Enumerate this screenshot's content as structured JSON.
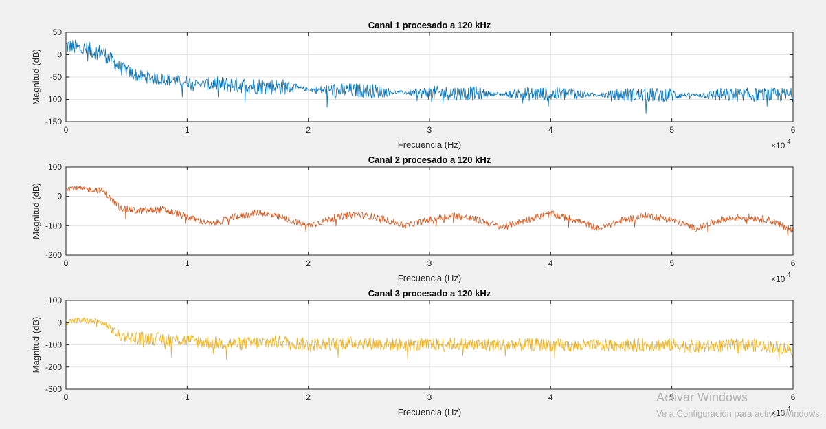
{
  "chart_data": [
    {
      "type": "line",
      "title": "Canal 1 procesado a 120 kHz",
      "xlabel": "Frecuencia (Hz)",
      "ylabel": "Magnitud (dB)",
      "xlim": [
        0,
        60000
      ],
      "ylim": [
        -150,
        50
      ],
      "xticks": [
        0,
        10000,
        20000,
        30000,
        40000,
        50000,
        60000
      ],
      "xticklabels": [
        "0",
        "1",
        "2",
        "3",
        "4",
        "5",
        "6"
      ],
      "yticks": [
        50,
        0,
        -50,
        -100,
        -150
      ],
      "yticklabels": [
        "50",
        "0",
        "-50",
        "-100",
        "-150"
      ],
      "x_multiplier": "×10",
      "x_multiplier_exp": "4",
      "grid": true,
      "color": "#0072BD",
      "series": [
        {
          "x": [
            0,
            1500,
            3000,
            4500,
            6000,
            8000,
            10000,
            11000,
            12000,
            14000,
            16000,
            18000,
            19500,
            20000,
            22000,
            24000,
            26000,
            27000,
            28000,
            30000,
            32000,
            34000,
            35000,
            36000,
            38000,
            40000,
            42000,
            43000,
            44000,
            46000,
            48000,
            50000,
            51000,
            52000,
            54000,
            56000,
            58000,
            60000
          ],
          "y": [
            20,
            12,
            5,
            -30,
            -48,
            -55,
            -60,
            -65,
            -66,
            -68,
            -70,
            -72,
            -76,
            -78,
            -80,
            -80,
            -82,
            -84,
            -85,
            -86,
            -86,
            -87,
            -88,
            -88,
            -88,
            -88,
            -88,
            -90,
            -90,
            -90,
            -90,
            -90,
            -90,
            -90,
            -90,
            -90,
            -90,
            -90
          ],
          "spread": [
            18,
            18,
            18,
            16,
            14,
            14,
            14,
            5,
            18,
            18,
            18,
            18,
            5,
            4,
            16,
            16,
            16,
            5,
            4,
            16,
            16,
            16,
            5,
            4,
            16,
            16,
            16,
            5,
            4,
            16,
            16,
            16,
            5,
            4,
            16,
            16,
            16,
            16
          ]
        }
      ]
    },
    {
      "type": "line",
      "title": "Canal 2 procesado a 120 kHz",
      "xlabel": "Frecuencia (Hz)",
      "ylabel": "Magnitud (dB)",
      "xlim": [
        0,
        60000
      ],
      "ylim": [
        -200,
        100
      ],
      "xticks": [
        0,
        10000,
        20000,
        30000,
        40000,
        50000,
        60000
      ],
      "xticklabels": [
        "0",
        "1",
        "2",
        "3",
        "4",
        "5",
        "6"
      ],
      "yticks": [
        100,
        0,
        -100,
        -200
      ],
      "yticklabels": [
        "100",
        "0",
        "-100",
        "-200"
      ],
      "x_multiplier": "×10",
      "x_multiplier_exp": "4",
      "grid": true,
      "color": "#D95319",
      "series": [
        {
          "x": [
            0,
            1500,
            3000,
            4500,
            6000,
            8000,
            10000,
            12000,
            14000,
            16000,
            18000,
            20000,
            22000,
            24000,
            26000,
            28000,
            30000,
            32000,
            34000,
            36000,
            38000,
            40000,
            42000,
            44000,
            46000,
            48000,
            50000,
            52000,
            54000,
            56000,
            58000,
            60000
          ],
          "y": [
            30,
            25,
            20,
            -40,
            -50,
            -45,
            -70,
            -95,
            -70,
            -55,
            -75,
            -100,
            -75,
            -60,
            -75,
            -100,
            -80,
            -65,
            -80,
            -105,
            -80,
            -60,
            -80,
            -110,
            -80,
            -65,
            -80,
            -110,
            -80,
            -70,
            -80,
            -115
          ],
          "spread": [
            10,
            10,
            10,
            12,
            12,
            12,
            12,
            10,
            12,
            12,
            12,
            10,
            12,
            12,
            12,
            10,
            12,
            12,
            12,
            10,
            12,
            12,
            12,
            10,
            12,
            12,
            12,
            10,
            12,
            12,
            12,
            12
          ]
        }
      ]
    },
    {
      "type": "line",
      "title": "Canal 3 procesado a 120 kHz",
      "xlabel": "Frecuencia (Hz)",
      "ylabel": "Magnitud (dB)",
      "xlim": [
        0,
        60000
      ],
      "ylim": [
        -300,
        100
      ],
      "xticks": [
        0,
        10000,
        20000,
        30000,
        40000,
        50000,
        60000
      ],
      "xticklabels": [
        "0",
        "1",
        "2",
        "3",
        "4",
        "5",
        "6"
      ],
      "yticks": [
        100,
        0,
        -100,
        -200,
        -300
      ],
      "yticklabels": [
        "100",
        "0",
        "-100",
        "-200",
        "-300"
      ],
      "x_multiplier": "×10",
      "x_multiplier_exp": "4",
      "grid": true,
      "color": "#EDB120",
      "series": [
        {
          "x": [
            0,
            1500,
            3000,
            4500,
            6000,
            8000,
            10000,
            12000,
            14000,
            16000,
            18000,
            20000,
            22000,
            24000,
            26000,
            28000,
            30000,
            32000,
            34000,
            36000,
            38000,
            40000,
            42000,
            44000,
            46000,
            48000,
            50000,
            52000,
            54000,
            56000,
            58000,
            60000
          ],
          "y": [
            5,
            10,
            0,
            -60,
            -70,
            -75,
            -80,
            -90,
            -95,
            -90,
            -85,
            -100,
            -95,
            -90,
            -95,
            -100,
            -100,
            -95,
            -100,
            -100,
            -100,
            -100,
            -105,
            -105,
            -100,
            -100,
            -100,
            -110,
            -105,
            -100,
            -105,
            -120
          ],
          "spread": [
            15,
            15,
            15,
            25,
            30,
            30,
            30,
            30,
            30,
            30,
            30,
            30,
            30,
            30,
            30,
            30,
            30,
            30,
            30,
            30,
            30,
            30,
            30,
            30,
            30,
            30,
            30,
            30,
            30,
            30,
            30,
            30
          ]
        }
      ]
    }
  ],
  "watermark": {
    "title": "Activar Windows",
    "subtitle": "Ve a Configuración para activar Windows."
  }
}
